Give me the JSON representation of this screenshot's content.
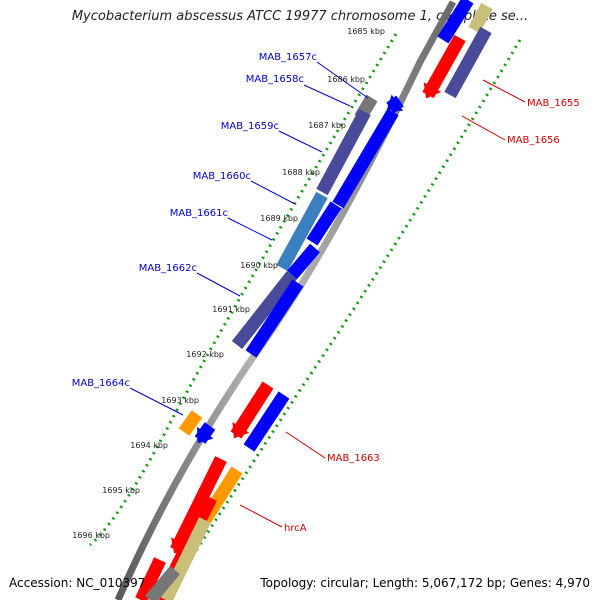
{
  "title": "Mycobacterium abscessus ATCC 19977 chromosome 1, complete se...",
  "footer": {
    "accession": "Accession: NC_010397",
    "summary": "Topology: circular; Length: 5,067,172 bp; Genes: 4,970"
  },
  "scale_ticks": [
    "1685 kbp",
    "1686 kbp",
    "1687 kbp",
    "1688 kbp",
    "1689 kbp",
    "1690 kbp",
    "1691 kbp",
    "1692 kbp",
    "1693 kbp",
    "1694 kbp",
    "1695 kbp",
    "1696 kbp"
  ],
  "gene_labels": {
    "reverse": [
      "MAB_1657c",
      "MAB_1658c",
      "MAB_1659c",
      "MAB_1660c",
      "MAB_1661c",
      "MAB_1662c",
      "MAB_1664c"
    ],
    "forward": [
      "MAB_1655",
      "MAB_1656",
      "MAB_1663",
      "hrcA"
    ]
  },
  "colors": {
    "forward_label": "#d00000",
    "reverse_label": "#0000cc",
    "red": "#ff0000",
    "blue": "#0000ff",
    "slate": "#4a4a9a",
    "orange": "#ff9900",
    "khaki": "#c8c07a",
    "gray": "#777777",
    "steelblue": "#3a7fc0",
    "tick_green": "#119911"
  }
}
